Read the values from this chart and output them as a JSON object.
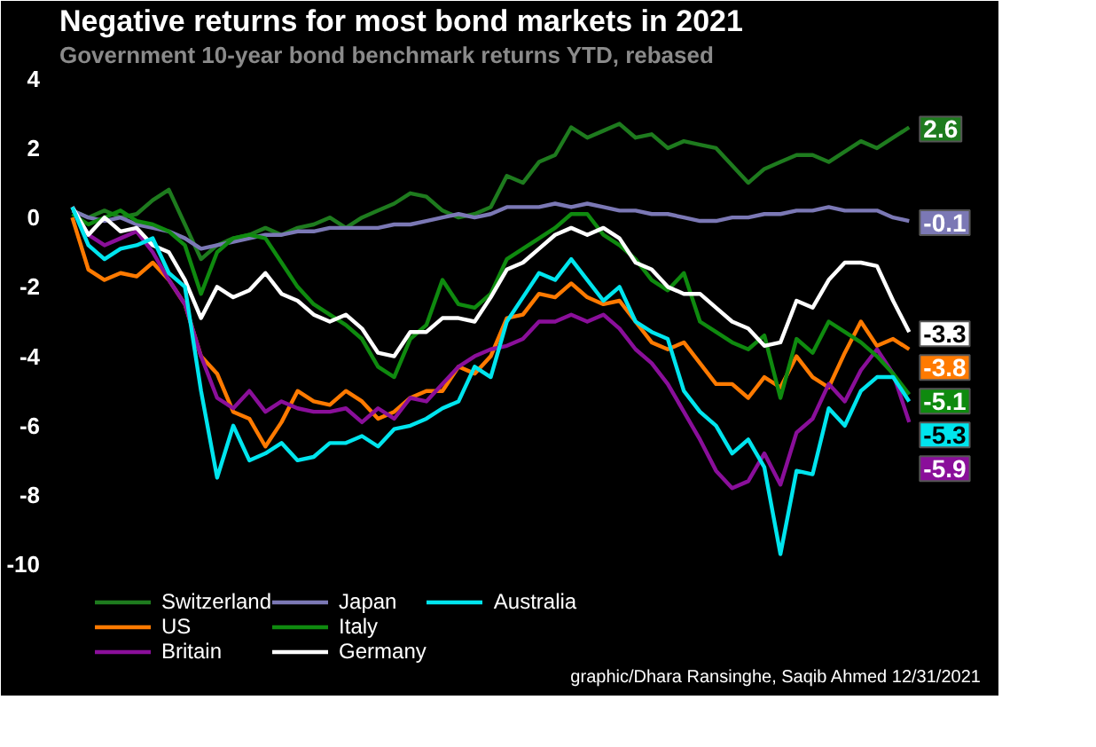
{
  "chart_data": {
    "type": "line",
    "title": "Negative returns for most bond markets in 2021",
    "subtitle": "Government 10-year bond benchmark returns YTD, rebased",
    "categories": [
      null,
      null,
      null,
      null,
      null,
      null,
      null,
      null,
      null,
      null,
      null,
      null,
      null,
      null,
      null,
      null,
      null,
      null,
      null,
      null,
      null,
      null,
      null,
      null,
      null,
      null,
      null,
      null,
      null,
      null,
      null,
      null,
      null,
      null,
      null,
      null,
      null,
      null,
      null,
      null,
      null,
      null,
      null,
      null,
      null,
      null,
      null,
      null,
      null,
      null,
      null,
      null,
      null
    ],
    "ylim": [
      -13.6,
      4.3
    ],
    "yticks": [
      -10,
      -8,
      -6,
      -4,
      -2,
      0,
      2,
      4
    ],
    "legend": "bottom",
    "annotations": [
      "graphic/Dhara Ransinghe, Saqib Ahmed 12/31/2021"
    ],
    "series": [
      {
        "name": "Switzerland",
        "color": "#1e7b1e",
        "values": [
          0.2,
          0,
          0.2,
          0,
          0.1,
          0.5,
          0.8,
          -0.2,
          -1.2,
          -0.8,
          -0.6,
          -0.5,
          -0.3,
          -0.5,
          -0.3,
          -0.2,
          0,
          -0.3,
          0,
          0.2,
          0.4,
          0.7,
          0.6,
          0.2,
          0,
          0.1,
          0.3,
          1.2,
          1.0,
          1.6,
          1.8,
          2.6,
          2.3,
          2.5,
          2.7,
          2.3,
          2.4,
          2.0,
          2.2,
          2.1,
          2.0,
          1.5,
          1.0,
          1.4,
          1.6,
          1.8,
          1.8,
          1.6,
          1.9,
          2.2,
          2.0,
          2.3,
          2.6
        ],
        "value_labels": [
          null,
          null,
          null,
          null,
          null,
          null,
          null,
          null,
          null,
          null,
          null,
          null,
          null,
          null,
          null,
          null,
          null,
          null,
          null,
          null,
          null,
          null,
          null,
          null,
          null,
          null,
          null,
          null,
          null,
          null,
          null,
          null,
          null,
          null,
          null,
          null,
          null,
          null,
          null,
          null,
          null,
          null,
          null,
          null,
          null,
          null,
          null,
          null,
          null,
          null,
          null,
          null,
          "2.6"
        ]
      },
      {
        "name": "US",
        "color": "#ff7a00",
        "values": [
          0,
          -1.5,
          -1.8,
          -1.6,
          -1.7,
          -1.3,
          -1.8,
          -2.5,
          -4.0,
          -4.5,
          -5.6,
          -5.8,
          -6.6,
          -5.9,
          -5.0,
          -5.3,
          -5.4,
          -5.0,
          -5.3,
          -5.8,
          -5.6,
          -5.2,
          -5.0,
          -5.0,
          -4.3,
          -4.5,
          -4.0,
          -2.9,
          -2.8,
          -2.2,
          -2.3,
          -1.9,
          -2.3,
          -2.5,
          -2.4,
          -3.0,
          -3.6,
          -3.8,
          -3.6,
          -4.2,
          -4.8,
          -4.8,
          -5.2,
          -4.6,
          -4.9,
          -4.0,
          -4.6,
          -4.9,
          -3.9,
          -3.0,
          -3.7,
          -3.5,
          -3.8
        ],
        "value_labels": [
          null,
          null,
          null,
          null,
          null,
          null,
          null,
          null,
          null,
          null,
          null,
          null,
          null,
          null,
          null,
          null,
          null,
          null,
          null,
          null,
          null,
          null,
          null,
          null,
          null,
          null,
          null,
          null,
          null,
          null,
          null,
          null,
          null,
          null,
          null,
          null,
          null,
          null,
          null,
          null,
          null,
          null,
          null,
          null,
          null,
          null,
          null,
          null,
          null,
          null,
          null,
          null,
          "-3.8"
        ]
      },
      {
        "name": "Britain",
        "color": "#8a0f9a",
        "values": [
          0.3,
          -0.5,
          -0.8,
          -0.6,
          -0.4,
          -1.0,
          -1.8,
          -2.5,
          -4.0,
          -5.2,
          -5.5,
          -5.0,
          -5.6,
          -5.3,
          -5.5,
          -5.6,
          -5.6,
          -5.5,
          -5.9,
          -5.5,
          -5.8,
          -5.2,
          -5.3,
          -4.8,
          -4.3,
          -4.0,
          -3.8,
          -3.7,
          -3.5,
          -3.0,
          -3.0,
          -2.8,
          -3.0,
          -2.8,
          -3.2,
          -3.8,
          -4.2,
          -4.8,
          -5.6,
          -6.4,
          -7.3,
          -7.8,
          -7.6,
          -6.8,
          -7.7,
          -6.2,
          -5.8,
          -4.8,
          -5.3,
          -4.4,
          -3.8,
          -4.5,
          -5.9
        ],
        "value_labels": [
          null,
          null,
          null,
          null,
          null,
          null,
          null,
          null,
          null,
          null,
          null,
          null,
          null,
          null,
          null,
          null,
          null,
          null,
          null,
          null,
          null,
          null,
          null,
          null,
          null,
          null,
          null,
          null,
          null,
          null,
          null,
          null,
          null,
          null,
          null,
          null,
          null,
          null,
          null,
          null,
          null,
          null,
          null,
          null,
          null,
          null,
          null,
          null,
          null,
          null,
          null,
          null,
          "-5.9"
        ]
      },
      {
        "name": "Japan",
        "color": "#7b78b5",
        "values": [
          0.2,
          0,
          -0.1,
          0,
          -0.2,
          -0.3,
          -0.4,
          -0.6,
          -0.9,
          -0.8,
          -0.7,
          -0.6,
          -0.5,
          -0.5,
          -0.4,
          -0.4,
          -0.3,
          -0.3,
          -0.3,
          -0.3,
          -0.2,
          -0.2,
          -0.1,
          0,
          0.1,
          0,
          0.1,
          0.3,
          0.3,
          0.3,
          0.4,
          0.3,
          0.4,
          0.3,
          0.2,
          0.2,
          0.1,
          0.1,
          0,
          -0.1,
          -0.1,
          0,
          0,
          0.1,
          0.1,
          0.2,
          0.2,
          0.3,
          0.2,
          0.2,
          0.2,
          0,
          -0.1
        ],
        "value_labels": [
          null,
          null,
          null,
          null,
          null,
          null,
          null,
          null,
          null,
          null,
          null,
          null,
          null,
          null,
          null,
          null,
          null,
          null,
          null,
          null,
          null,
          null,
          null,
          null,
          null,
          null,
          null,
          null,
          null,
          null,
          null,
          null,
          null,
          null,
          null,
          null,
          null,
          null,
          null,
          null,
          null,
          null,
          null,
          null,
          null,
          null,
          null,
          null,
          null,
          null,
          null,
          null,
          "-0.1"
        ]
      },
      {
        "name": "Italy",
        "color": "#0f8a0f",
        "values": [
          0.1,
          -0.2,
          0,
          0.2,
          -0.1,
          -0.2,
          -0.4,
          -0.8,
          -2.2,
          -1.0,
          -0.6,
          -0.5,
          -0.6,
          -1.3,
          -2.0,
          -2.5,
          -2.8,
          -3.1,
          -3.5,
          -4.3,
          -4.6,
          -3.5,
          -3.1,
          -1.8,
          -2.5,
          -2.6,
          -2.2,
          -1.2,
          -0.9,
          -0.6,
          -0.3,
          0.1,
          0.1,
          -0.5,
          -0.8,
          -1.2,
          -1.8,
          -2.1,
          -1.6,
          -3.0,
          -3.3,
          -3.6,
          -3.8,
          -3.4,
          -5.2,
          -3.5,
          -3.9,
          -3.0,
          -3.3,
          -3.6,
          -4.0,
          -4.5,
          -5.1
        ],
        "value_labels": [
          null,
          null,
          null,
          null,
          null,
          null,
          null,
          null,
          null,
          null,
          null,
          null,
          null,
          null,
          null,
          null,
          null,
          null,
          null,
          null,
          null,
          null,
          null,
          null,
          null,
          null,
          null,
          null,
          null,
          null,
          null,
          null,
          null,
          null,
          null,
          null,
          null,
          null,
          null,
          null,
          null,
          null,
          null,
          null,
          null,
          null,
          null,
          null,
          null,
          null,
          null,
          null,
          "-5.1"
        ]
      },
      {
        "name": "Germany",
        "color": "#ffffff",
        "values": [
          0.3,
          -0.5,
          0,
          -0.4,
          -0.3,
          -0.8,
          -1.0,
          -1.8,
          -2.9,
          -2.0,
          -2.3,
          -2.1,
          -1.6,
          -2.2,
          -2.4,
          -2.8,
          -3.0,
          -2.8,
          -3.2,
          -3.9,
          -4.0,
          -3.3,
          -3.3,
          -2.9,
          -2.9,
          -3.0,
          -2.3,
          -1.5,
          -1.3,
          -0.9,
          -0.5,
          -0.3,
          -0.5,
          -0.3,
          -0.6,
          -1.3,
          -1.5,
          -2.0,
          -2.2,
          -2.2,
          -2.6,
          -3.0,
          -3.2,
          -3.7,
          -3.6,
          -2.4,
          -2.6,
          -1.8,
          -1.3,
          -1.3,
          -1.4,
          -2.4,
          -3.3
        ],
        "value_labels": [
          null,
          null,
          null,
          null,
          null,
          null,
          null,
          null,
          null,
          null,
          null,
          null,
          null,
          null,
          null,
          null,
          null,
          null,
          null,
          null,
          null,
          null,
          null,
          null,
          null,
          null,
          null,
          null,
          null,
          null,
          null,
          null,
          null,
          null,
          null,
          null,
          null,
          null,
          null,
          null,
          null,
          null,
          null,
          null,
          null,
          null,
          null,
          null,
          null,
          null,
          null,
          null,
          "-3.3"
        ]
      },
      {
        "name": "Australia",
        "color": "#00e5ee",
        "values": [
          0.3,
          -0.8,
          -1.2,
          -0.9,
          -0.8,
          -0.6,
          -1.6,
          -2.0,
          -5.0,
          -7.5,
          -6.0,
          -7.0,
          -6.8,
          -6.5,
          -7.0,
          -6.9,
          -6.5,
          -6.5,
          -6.3,
          -6.6,
          -6.1,
          -6.0,
          -5.8,
          -5.5,
          -5.3,
          -4.3,
          -4.6,
          -3.0,
          -2.3,
          -1.6,
          -1.8,
          -1.2,
          -1.8,
          -2.4,
          -2.0,
          -3.0,
          -3.3,
          -3.5,
          -5.0,
          -5.6,
          -6.0,
          -6.8,
          -6.4,
          -7.2,
          -9.7,
          -7.3,
          -7.4,
          -5.5,
          -6.0,
          -5.0,
          -4.6,
          -4.6,
          -5.3
        ],
        "value_labels": [
          null,
          null,
          null,
          null,
          null,
          null,
          null,
          null,
          null,
          null,
          null,
          null,
          null,
          null,
          null,
          null,
          null,
          null,
          null,
          null,
          null,
          null,
          null,
          null,
          null,
          null,
          null,
          null,
          null,
          null,
          null,
          null,
          null,
          null,
          null,
          null,
          null,
          null,
          null,
          null,
          null,
          null,
          null,
          null,
          null,
          null,
          null,
          null,
          null,
          null,
          null,
          null,
          "-5.3"
        ]
      }
    ]
  }
}
